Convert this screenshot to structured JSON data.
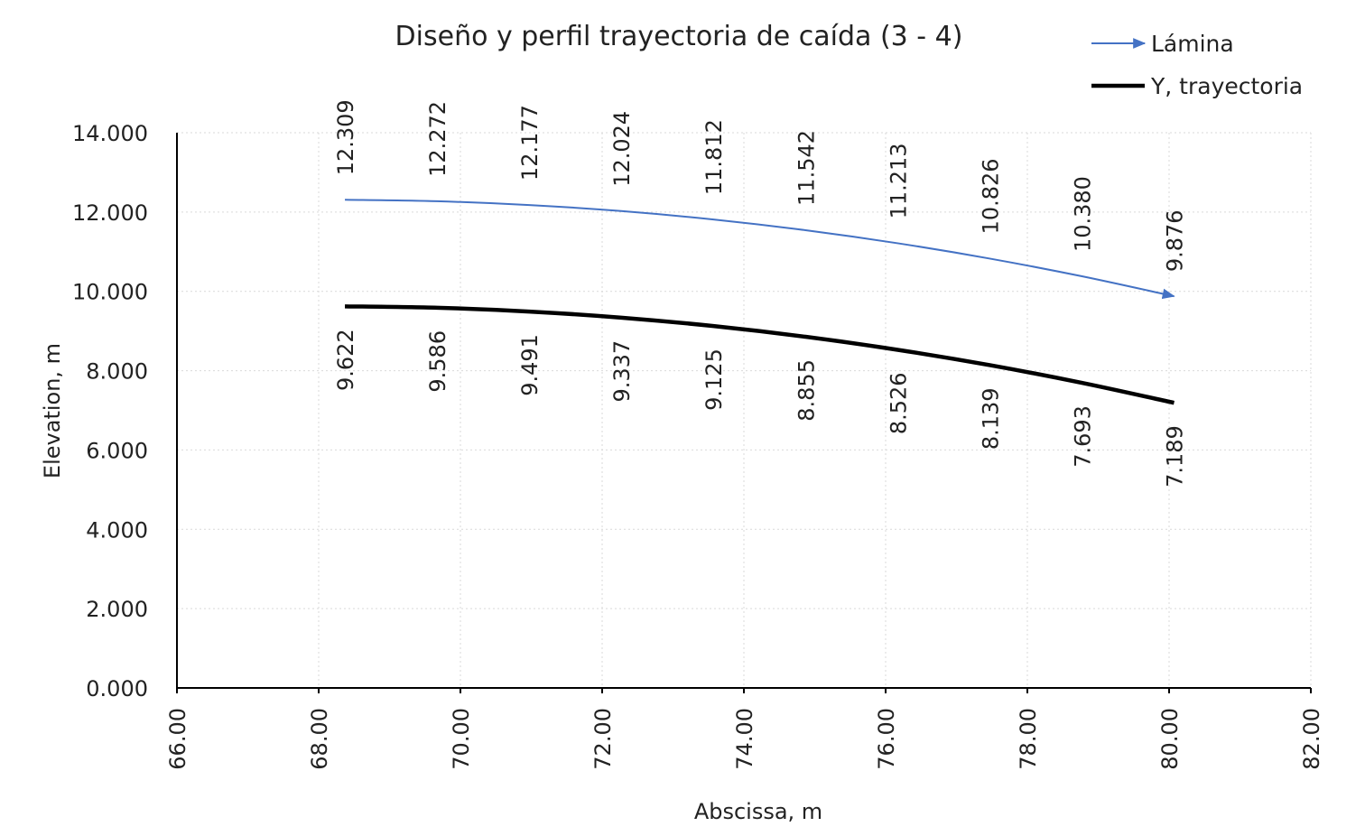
{
  "chart_data": {
    "type": "line",
    "title": "Diseño y perfil trayectoria de caída (3 - 4)",
    "xlabel": "Abscissa, m",
    "ylabel": "Elevation, m",
    "xlim": [
      66,
      82
    ],
    "ylim": [
      0,
      14
    ],
    "x_ticks": [
      "66.00",
      "68.00",
      "70.00",
      "72.00",
      "74.00",
      "76.00",
      "78.00",
      "80.00",
      "82.00"
    ],
    "y_ticks": [
      "0.000",
      "2.000",
      "4.000",
      "6.000",
      "8.000",
      "10.000",
      "12.000",
      "14.000"
    ],
    "grid": true,
    "legend_position": "top-right",
    "x": [
      68.37,
      69.67,
      70.97,
      72.27,
      73.57,
      74.87,
      76.17,
      77.47,
      78.77,
      80.07
    ],
    "series": [
      {
        "name": "Lámina",
        "color": "#4472C4",
        "marker": "arrow-end",
        "values": [
          12.309,
          12.272,
          12.177,
          12.024,
          11.812,
          11.542,
          11.213,
          10.826,
          10.38,
          9.876
        ],
        "labels": [
          "12.309",
          "12.272",
          "12.177",
          "12.024",
          "11.812",
          "11.542",
          "11.213",
          "10.826",
          "10.380",
          "9.876"
        ]
      },
      {
        "name": "Y, trayectoria",
        "color": "#000000",
        "values": [
          9.622,
          9.586,
          9.491,
          9.337,
          9.125,
          8.855,
          8.526,
          8.139,
          7.693,
          7.189
        ],
        "labels": [
          "9.622",
          "9.586",
          "9.491",
          "9.337",
          "9.125",
          "8.855",
          "8.526",
          "8.139",
          "7.693",
          "7.189"
        ]
      }
    ]
  }
}
